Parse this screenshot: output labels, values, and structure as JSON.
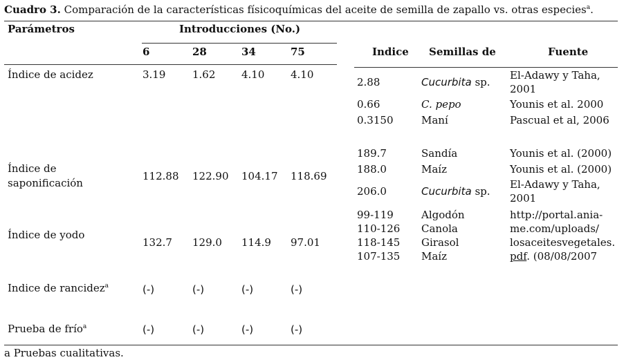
{
  "caption": {
    "label": "Cuadro 3.",
    "text": "Comparación de la características físicoquímicas del aceite de semilla de zapallo vs. otras especies",
    "sup": "a",
    "end": "."
  },
  "headers": {
    "parametros": "Parámetros",
    "introducciones": "Introducciones (No.)",
    "cols": [
      "6",
      "28",
      "34",
      "75"
    ],
    "indice": "Indice",
    "semillas": "Semillas de",
    "fuente": "Fuente"
  },
  "rows": [
    {
      "label": "Índice de acidez",
      "sup": "",
      "values": [
        "3.19",
        "1.62",
        "4.10",
        "4.10"
      ]
    },
    {
      "label_line1": "Índice de",
      "label_line2": "saponificación",
      "values": [
        "112.88",
        "122.90",
        "104.17",
        "118.69"
      ]
    },
    {
      "label": "Índice de yodo",
      "sup": "",
      "values": [
        "132.7",
        "129.0",
        "114.9",
        "97.01"
      ]
    },
    {
      "label": "Indice de rancidez",
      "sup": "a",
      "values": [
        "(-)",
        "(-)",
        "(-)",
        "(-)"
      ]
    },
    {
      "label": "Prueba de frío",
      "sup": "a",
      "values": [
        "(-)",
        "(-)",
        "(-)",
        "(-)"
      ]
    }
  ],
  "comparisons": [
    {
      "indice": "2.88",
      "semilla": "Cucurbita",
      "semilla_rest": " sp.",
      "fuente_line1": "El-Adawy y Taha,",
      "fuente_line2": "2001"
    },
    {
      "indice": "0.66",
      "semilla": "C. pepo",
      "semilla_rest": "",
      "fuente": "Younis et al. 2000"
    },
    {
      "indice": "0.3150",
      "semilla": "Maní",
      "fuente": "Pascual et al, 2006"
    },
    {
      "indice": "189.7",
      "semilla": "Sandía",
      "fuente": "Younis et al. (2000)"
    },
    {
      "indice": "188.0",
      "semilla": "Maíz",
      "fuente": "Younis et al. (2000)"
    },
    {
      "indice": "206.0",
      "semilla": "Cucurbita",
      "semilla_rest": " sp.",
      "fuente_line1": "El-Adawy y Taha,",
      "fuente_line2": "2001"
    },
    {
      "indices": [
        "99-119",
        "110-126",
        "118-145",
        "107-135"
      ],
      "semillas": [
        "Algodón",
        "Canola",
        "Girasol",
        "Maíz"
      ],
      "fuente_lines": [
        "http://portal.ania-",
        "me.com/uploads/",
        "losaceitesvegetales.",
        "pdf"
      ],
      "fuente_tail": ". (08/08/2007"
    }
  ],
  "footnote": "a Pruebas cualitativas."
}
